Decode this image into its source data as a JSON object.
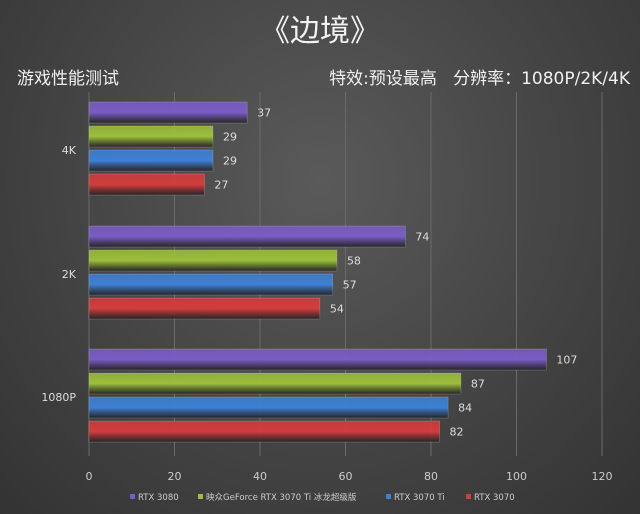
{
  "title": "《边境》",
  "subtitle_left": "游戏性能测试",
  "subtitle_right": "特效:预设最高   分辨率：1080P/2K/4K",
  "chart_data": {
    "type": "bar",
    "orientation": "horizontal",
    "categories": [
      "4K",
      "2K",
      "1080P"
    ],
    "series": [
      {
        "name": "RTX 3080",
        "color": "#7a5cc6",
        "values": [
          37,
          74,
          107
        ]
      },
      {
        "name": "映众GeForce RTX 3070 Ti 冰龙超级版",
        "color": "#9cbf3a",
        "values": [
          29,
          58,
          87
        ]
      },
      {
        "name": "RTX 3070 Ti",
        "color": "#3e80d6",
        "values": [
          29,
          57,
          84
        ]
      },
      {
        "name": "RTX 3070",
        "color": "#d43c3c",
        "values": [
          27,
          54,
          82
        ]
      }
    ],
    "xlim": [
      0,
      120
    ],
    "xticks": [
      0,
      20,
      40,
      60,
      80,
      100,
      120
    ],
    "grid": true,
    "legend_position": "bottom"
  }
}
